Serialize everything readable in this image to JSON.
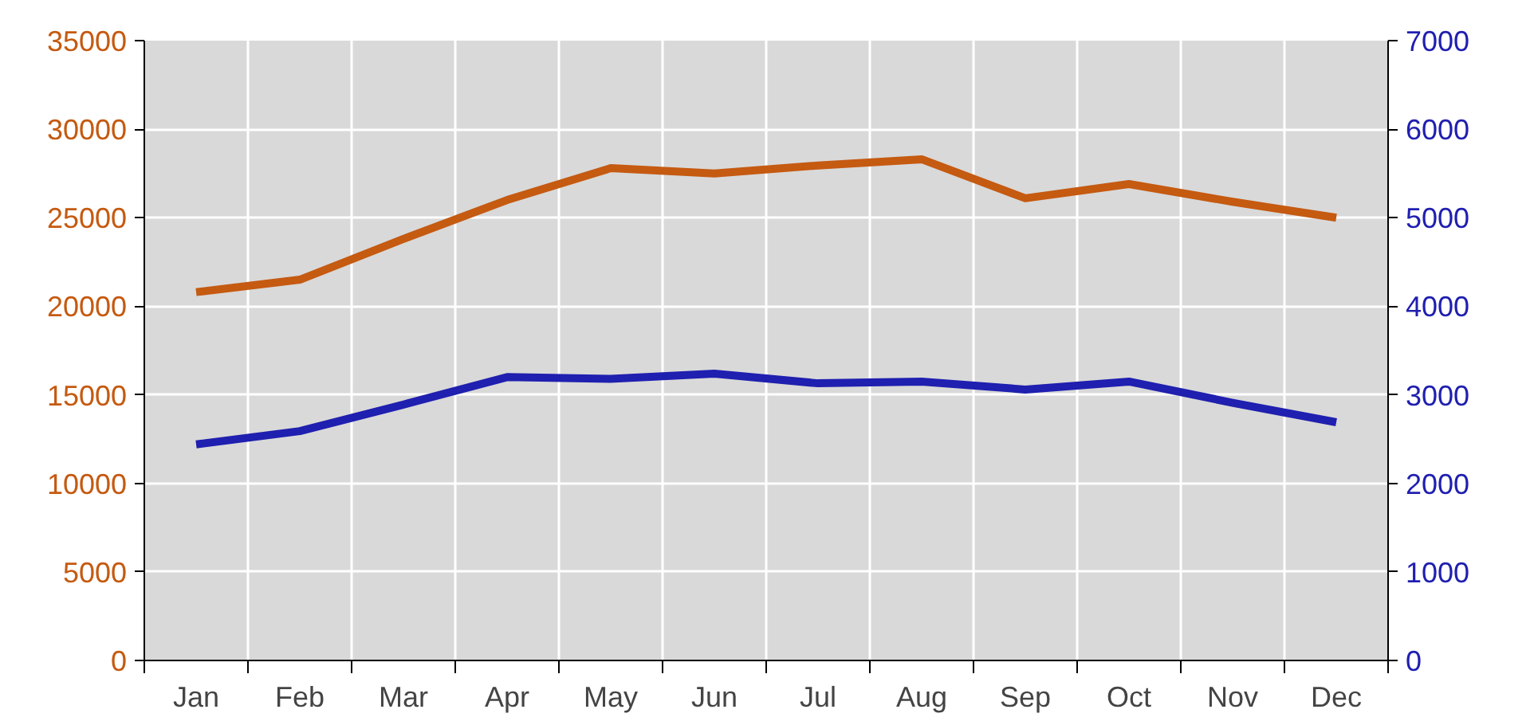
{
  "chart_data": {
    "type": "line",
    "categories": [
      "Jan",
      "Feb",
      "Mar",
      "Apr",
      "May",
      "Jun",
      "Jul",
      "Aug",
      "Sep",
      "Oct",
      "Nov",
      "Dec"
    ],
    "series": [
      {
        "color": "#c55a11",
        "values": [
          20800,
          21500,
          23800,
          26000,
          27800,
          27500,
          27950,
          28300,
          26100,
          26900,
          25900,
          25000
        ]
      },
      {
        "color": "#1f1fb0",
        "axis": "y2",
        "values": [
          2440,
          2590,
          2890,
          3200,
          3180,
          3240,
          3130,
          3150,
          3060,
          3150,
          2910,
          2690
        ]
      }
    ],
    "ylim": [
      0,
      35000
    ],
    "yticks": [
      0,
      5000,
      10000,
      15000,
      20000,
      25000,
      30000,
      35000
    ],
    "y2lim": [
      0,
      7000
    ],
    "y2ticks": [
      0,
      1000,
      2000,
      3000,
      4000,
      5000,
      6000,
      7000
    ],
    "grid": true,
    "marker": "none",
    "line_style": "solid"
  }
}
